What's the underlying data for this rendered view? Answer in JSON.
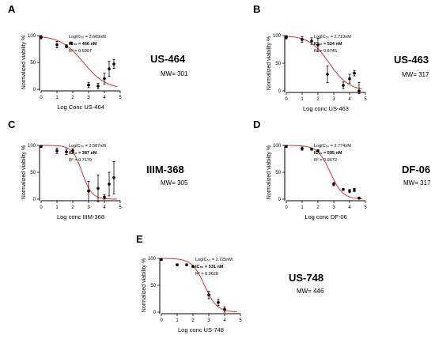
{
  "chart_data": [
    {
      "type": "scatter",
      "panel_label": "A",
      "compound": "US-464",
      "mw_text": "MW= 301",
      "xlabel": "Log Conc US-464",
      "ylabel": "Normalized viability %",
      "xlim": [
        0,
        5
      ],
      "ylim": [
        0,
        100
      ],
      "xticks": [
        0,
        1,
        2,
        3,
        4,
        5
      ],
      "yticks": [
        0,
        50,
        100
      ],
      "annot_logic50": "LogIC₅₀ = 2.669nM",
      "annot_ic50": "IC₅₀ = 466 nM",
      "annot_r2": "R² = 0.5997",
      "fit": {
        "top": 100,
        "bottom": 0,
        "logIC50": 2.669,
        "hill": 0.6,
        "color": "#e03030"
      },
      "points": [
        {
          "x": 0,
          "y": 97,
          "err": 3
        },
        {
          "x": 1,
          "y": 83,
          "err": 6
        },
        {
          "x": 1.6,
          "y": 80,
          "err": 3
        },
        {
          "x": 1.9,
          "y": 86,
          "err": 2
        },
        {
          "x": 3,
          "y": 8,
          "err": 5
        },
        {
          "x": 3.6,
          "y": 6,
          "err": 5
        },
        {
          "x": 4,
          "y": 20,
          "err": 10
        },
        {
          "x": 4.3,
          "y": 38,
          "err": 14
        },
        {
          "x": 4.6,
          "y": 47,
          "err": 8
        }
      ]
    },
    {
      "type": "scatter",
      "panel_label": "B",
      "compound": "US-463",
      "mw_text": "MW= 317",
      "xlabel": "Log conc US-463",
      "ylabel": "Normalized viability %",
      "xlim": [
        0,
        5
      ],
      "ylim": [
        0,
        100
      ],
      "xticks": [
        0,
        1,
        2,
        3,
        4,
        5
      ],
      "yticks": [
        0,
        50,
        100
      ],
      "annot_logic50": "LogIC₅₀ = 2.719nM",
      "annot_ic50": "IC₅₀ = 524 nM",
      "annot_r2": "R² = 0.8745",
      "fit": {
        "top": 100,
        "bottom": 0,
        "logIC50": 2.719,
        "hill": 0.7,
        "color": "#e03030"
      },
      "points": [
        {
          "x": 0,
          "y": 97,
          "err": 3
        },
        {
          "x": 1,
          "y": 93,
          "err": 5
        },
        {
          "x": 1.6,
          "y": 90,
          "err": 6
        },
        {
          "x": 2,
          "y": 83,
          "err": 12
        },
        {
          "x": 2.6,
          "y": 30,
          "err": 15
        },
        {
          "x": 3.6,
          "y": 10,
          "err": 6
        },
        {
          "x": 4,
          "y": 22,
          "err": 8
        },
        {
          "x": 4.3,
          "y": 32,
          "err": 5
        },
        {
          "x": 4.6,
          "y": 0,
          "err": 15
        }
      ]
    },
    {
      "type": "scatter",
      "panel_label": "C",
      "compound": "IIIM-368",
      "mw_text": "MW= 305",
      "xlabel": "Log conc IIIM-368",
      "ylabel": "Normalized viability %",
      "xlim": [
        0,
        5
      ],
      "ylim": [
        0,
        100
      ],
      "xticks": [
        0,
        1,
        2,
        3,
        4,
        5
      ],
      "yticks": [
        0,
        50,
        100
      ],
      "annot_logic50": "LogIC₅₀ = 2.587nM",
      "annot_ic50": "IC₅₀ = 387 nM",
      "annot_r2": "R² = 0.7179",
      "fit": {
        "top": 100,
        "bottom": 0,
        "logIC50": 2.587,
        "hill": 1.4,
        "color": "#e03030"
      },
      "points": [
        {
          "x": 0,
          "y": 98,
          "err": 2
        },
        {
          "x": 1,
          "y": 90,
          "err": 5
        },
        {
          "x": 1.6,
          "y": 88,
          "err": 5
        },
        {
          "x": 2,
          "y": 90,
          "err": 4
        },
        {
          "x": 3,
          "y": 15,
          "err": 18
        },
        {
          "x": 3.6,
          "y": 20,
          "err": 25
        },
        {
          "x": 4,
          "y": 4,
          "err": 4
        },
        {
          "x": 4.3,
          "y": 28,
          "err": 22
        },
        {
          "x": 4.6,
          "y": 40,
          "err": 30
        }
      ]
    },
    {
      "type": "scatter",
      "panel_label": "D",
      "compound": "DF-06",
      "mw_text": "MW= 317",
      "xlabel": "Log conc DF-06",
      "ylabel": "Normalized viability %",
      "xlim": [
        0,
        5
      ],
      "ylim": [
        0,
        100
      ],
      "xticks": [
        0,
        1,
        2,
        3,
        4,
        5
      ],
      "yticks": [
        0,
        50,
        100
      ],
      "annot_logic50": "LogIC₅₀ = 2.774nM",
      "annot_ic50": "IC₅₀ = 595 nM",
      "annot_r2": "R² = 0.9672",
      "fit": {
        "top": 100,
        "bottom": 0,
        "logIC50": 2.774,
        "hill": 1.1,
        "color": "#e03030"
      },
      "points": [
        {
          "x": 0,
          "y": 98,
          "err": 2
        },
        {
          "x": 1,
          "y": 94,
          "err": 3
        },
        {
          "x": 1.6,
          "y": 93,
          "err": 2
        },
        {
          "x": 2,
          "y": 90,
          "err": 2
        },
        {
          "x": 3,
          "y": 28,
          "err": 3
        },
        {
          "x": 3.6,
          "y": 18,
          "err": 2
        },
        {
          "x": 4,
          "y": 15,
          "err": 3
        },
        {
          "x": 4.3,
          "y": 17,
          "err": 3
        },
        {
          "x": 4.6,
          "y": 2,
          "err": 2
        }
      ]
    },
    {
      "type": "scatter",
      "panel_label": "E",
      "compound": "US-748",
      "mw_text": "MW= 446",
      "xlabel": "Log conc US-748",
      "ylabel": "Normalized viability %",
      "xlim": [
        0,
        5
      ],
      "ylim": [
        0,
        100
      ],
      "xticks": [
        0,
        1,
        2,
        3,
        4,
        5
      ],
      "yticks": [
        0,
        50,
        100
      ],
      "annot_logic50": "LogIC₅₀ = 2.725nM",
      "annot_ic50": "IC₅₀ = 531 nM",
      "annot_r2": "R² = 0.9628",
      "fit": {
        "top": 100,
        "bottom": 0,
        "logIC50": 2.725,
        "hill": 1.1,
        "color": "#e03030"
      },
      "points": [
        {
          "x": 0,
          "y": 98,
          "err": 2
        },
        {
          "x": 1,
          "y": 88,
          "err": 2
        },
        {
          "x": 1.6,
          "y": 88,
          "err": 2
        },
        {
          "x": 2,
          "y": 85,
          "err": 2
        },
        {
          "x": 3,
          "y": 32,
          "err": 7
        },
        {
          "x": 3.6,
          "y": 18,
          "err": 6
        },
        {
          "x": 4,
          "y": 5,
          "err": 5
        }
      ]
    }
  ]
}
